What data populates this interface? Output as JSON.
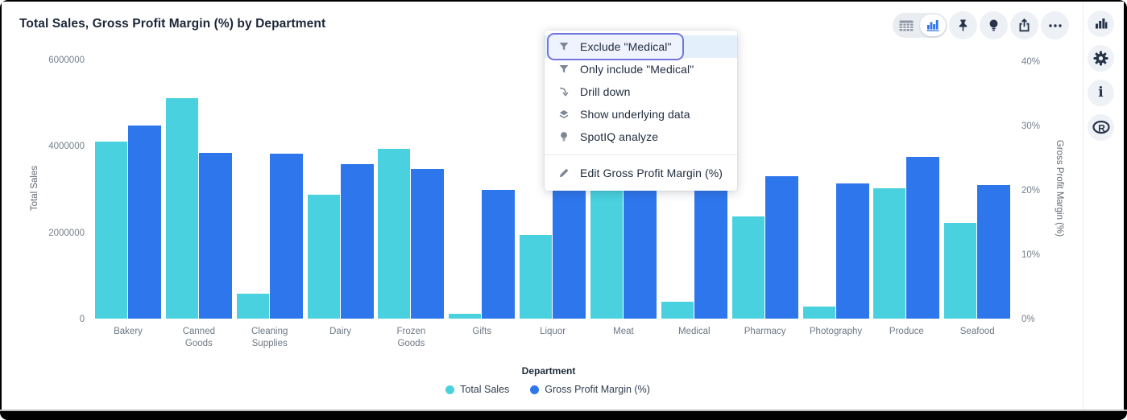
{
  "window": {
    "title": "Total Sales, Gross Profit Margin (%) by Department"
  },
  "toolbar": {
    "view_toggle": {
      "options": [
        "table-view",
        "chart-view"
      ],
      "selected": "chart-view"
    },
    "buttons": [
      "pin",
      "spotiq-bulb",
      "share",
      "more-options"
    ]
  },
  "side_rail": {
    "buttons": [
      "chart-config",
      "settings",
      "info",
      "r-analysis"
    ],
    "r_label": "R"
  },
  "context_menu": {
    "items": [
      {
        "icon": "filter-icon",
        "label": "Exclude \"Medical\"",
        "highlighted": true
      },
      {
        "icon": "filter-icon",
        "label": "Only include \"Medical\"",
        "highlighted": false
      },
      {
        "icon": "drill-down-icon",
        "label": "Drill down",
        "highlighted": false
      },
      {
        "icon": "underlying-data-icon",
        "label": "Show underlying data",
        "highlighted": false
      },
      {
        "icon": "spotiq-icon",
        "label": "SpotIQ analyze",
        "highlighted": false
      }
    ],
    "footer_items": [
      {
        "icon": "edit-icon",
        "label": "Edit Gross Profit Margin (%)",
        "highlighted": false
      }
    ]
  },
  "chart_data": {
    "type": "bar",
    "title": "Total Sales, Gross Profit Margin (%) by Department",
    "xlabel": "Department",
    "categories": [
      "Bakery",
      "Canned Goods",
      "Cleaning Supplies",
      "Dairy",
      "Frozen Goods",
      "Gifts",
      "Liquor",
      "Meat",
      "Medical",
      "Pharmacy",
      "Photography",
      "Produce",
      "Seafood"
    ],
    "series": [
      {
        "name": "Total Sales",
        "axis": "left",
        "color": "#49d1df",
        "values": [
          4140000,
          5140000,
          610000,
          2910000,
          3970000,
          150000,
          1980000,
          3130000,
          430000,
          2400000,
          320000,
          3060000,
          2250000
        ]
      },
      {
        "name": "Gross Profit Margin (%)",
        "axis": "right",
        "color": "#2e76ec",
        "values": [
          30.2,
          26.0,
          25.9,
          24.3,
          23.5,
          20.3,
          21.0,
          21.0,
          20.9,
          22.4,
          21.3,
          25.4,
          21.0
        ]
      }
    ],
    "y_left": {
      "label": "Total Sales",
      "ticks": [
        "6000000",
        "4000000",
        "2000000",
        "0"
      ],
      "range": [
        0,
        6000000
      ]
    },
    "y_right": {
      "label": "Gross Profit Margin (%)",
      "ticks": [
        "40%",
        "30%",
        "20%",
        "10%",
        "0%"
      ],
      "range": [
        0,
        40
      ]
    },
    "legend": [
      {
        "label": "Total Sales",
        "color": "#49d1df"
      },
      {
        "label": "Gross Profit Margin (%)",
        "color": "#2e76ec"
      }
    ],
    "grid": false,
    "legend_position": "bottom"
  },
  "colors": {
    "series_cyan": "#49d1df",
    "series_blue": "#2e76ec",
    "menu_highlight_border": "#7276dc",
    "menu_highlight_bg": "#e3f0fc",
    "icon_dark": "#26334a",
    "icon_gray": "#7c8796"
  }
}
